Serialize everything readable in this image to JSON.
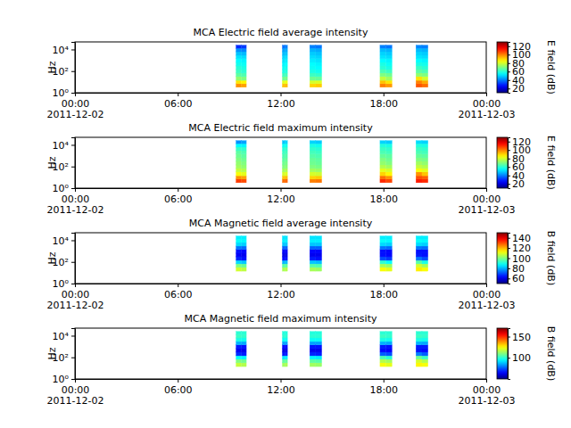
{
  "chart_data": [
    {
      "type": "heatmap",
      "title": "MCA  Electric field average intensity",
      "y_label": "Hz",
      "log": "y",
      "xlim": [
        "2011-12-02 00:00",
        "2011-12-03 00:00"
      ],
      "xticks": [
        {
          "value": "2011-12-02 00:00",
          "label": "00:00\n2011-12-02"
        },
        {
          "value": "2011-12-02 06:00",
          "label": "06:00"
        },
        {
          "value": "2011-12-02 12:00",
          "label": "12:00"
        },
        {
          "value": "2011-12-02 18:00",
          "label": "18:00"
        },
        {
          "value": "2011-12-03 00:00",
          "label": "00:00\n2011-12-03"
        }
      ],
      "ylim": [
        1,
        50000
      ],
      "yticks": [
        {
          "value": 1,
          "label": "10⁰"
        },
        {
          "value": 100,
          "label": "10²"
        },
        {
          "value": 10000,
          "label": "10⁴"
        }
      ],
      "x_bins": [
        [
          "2011-12-02 09:24",
          "2011-12-02 09:42"
        ],
        [
          "2011-12-02 09:42",
          "2011-12-02 10:00"
        ],
        [
          "2011-12-02 12:06",
          "2011-12-02 12:15"
        ],
        [
          "2011-12-02 12:15",
          "2011-12-02 12:24"
        ],
        [
          "2011-12-02 13:42",
          "2011-12-02 14:03"
        ],
        [
          "2011-12-02 14:03",
          "2011-12-02 14:24"
        ],
        [
          "2011-12-02 17:48",
          "2011-12-02 18:09"
        ],
        [
          "2011-12-02 18:09",
          "2011-12-02 18:30"
        ],
        [
          "2011-12-02 19:54",
          "2011-12-02 20:15"
        ],
        [
          "2011-12-02 20:15",
          "2011-12-02 20:36"
        ]
      ],
      "y_bins": [
        3.2,
        6.8,
        14,
        31,
        66,
        140,
        300,
        640,
        1400,
        2900,
        6200,
        13000,
        25000
      ],
      "cells": [
        [
          98,
          88,
          72,
          66,
          62,
          60,
          57,
          55,
          52,
          48,
          42,
          30
        ],
        [
          96,
          86,
          70,
          64,
          60,
          58,
          56,
          54,
          51,
          47,
          41,
          32
        ],
        [
          92,
          82,
          68,
          62,
          58,
          56,
          54,
          52,
          50,
          47,
          44,
          38
        ],
        [
          93,
          83,
          69,
          63,
          59,
          57,
          55,
          53,
          51,
          48,
          45,
          40
        ],
        [
          90,
          80,
          68,
          62,
          58,
          56,
          55,
          53,
          51,
          49,
          46,
          40
        ],
        [
          91,
          81,
          67,
          61,
          57,
          55,
          54,
          52,
          50,
          48,
          45,
          39
        ],
        [
          100,
          92,
          78,
          70,
          64,
          60,
          58,
          55,
          52,
          50,
          47,
          40
        ],
        [
          97,
          88,
          74,
          68,
          62,
          58,
          56,
          54,
          51,
          49,
          46,
          39
        ],
        [
          105,
          100,
          88,
          72,
          66,
          62,
          58,
          55,
          52,
          50,
          47,
          41
        ],
        [
          102,
          95,
          80,
          70,
          64,
          60,
          57,
          54,
          51,
          49,
          46,
          40
        ]
      ],
      "colorbar": {
        "label": "E field (dB)",
        "lim": [
          10,
          130
        ],
        "ticks": [
          20,
          40,
          60,
          80,
          100,
          120
        ]
      }
    },
    {
      "type": "heatmap",
      "title": "MCA  Electric field maximum intensity",
      "y_label": "Hz",
      "log": "y",
      "xlim": [
        "2011-12-02 00:00",
        "2011-12-03 00:00"
      ],
      "xticks": [
        {
          "value": "2011-12-02 00:00",
          "label": "00:00\n2011-12-02"
        },
        {
          "value": "2011-12-02 06:00",
          "label": "06:00"
        },
        {
          "value": "2011-12-02 12:00",
          "label": "12:00"
        },
        {
          "value": "2011-12-02 18:00",
          "label": "18:00"
        },
        {
          "value": "2011-12-03 00:00",
          "label": "00:00\n2011-12-03"
        }
      ],
      "ylim": [
        1,
        50000
      ],
      "yticks": [
        {
          "value": 1,
          "label": "10⁰"
        },
        {
          "value": 100,
          "label": "10²"
        },
        {
          "value": 10000,
          "label": "10⁴"
        }
      ],
      "x_bins": [
        [
          "2011-12-02 09:24",
          "2011-12-02 09:42"
        ],
        [
          "2011-12-02 09:42",
          "2011-12-02 10:00"
        ],
        [
          "2011-12-02 12:06",
          "2011-12-02 12:15"
        ],
        [
          "2011-12-02 12:15",
          "2011-12-02 12:24"
        ],
        [
          "2011-12-02 13:42",
          "2011-12-02 14:03"
        ],
        [
          "2011-12-02 14:03",
          "2011-12-02 14:24"
        ],
        [
          "2011-12-02 17:48",
          "2011-12-02 18:09"
        ],
        [
          "2011-12-02 18:09",
          "2011-12-02 18:30"
        ],
        [
          "2011-12-02 19:54",
          "2011-12-02 20:15"
        ],
        [
          "2011-12-02 20:15",
          "2011-12-02 20:36"
        ]
      ],
      "y_bins": [
        3.2,
        6.8,
        14,
        31,
        66,
        140,
        300,
        640,
        1400,
        2900,
        6200,
        13000,
        25000
      ],
      "cells": [
        [
          108,
          98,
          84,
          78,
          74,
          72,
          70,
          68,
          66,
          62,
          55,
          42
        ],
        [
          106,
          96,
          82,
          76,
          72,
          70,
          68,
          66,
          64,
          61,
          54,
          44
        ],
        [
          102,
          92,
          80,
          74,
          70,
          68,
          66,
          64,
          62,
          60,
          56,
          48
        ],
        [
          103,
          93,
          81,
          75,
          71,
          69,
          67,
          65,
          63,
          61,
          57,
          50
        ],
        [
          100,
          90,
          80,
          74,
          70,
          68,
          67,
          65,
          63,
          61,
          58,
          50
        ],
        [
          101,
          91,
          79,
          73,
          69,
          67,
          66,
          64,
          62,
          60,
          57,
          49
        ],
        [
          110,
          102,
          90,
          82,
          76,
          72,
          70,
          67,
          64,
          62,
          59,
          50
        ],
        [
          107,
          98,
          86,
          80,
          74,
          70,
          68,
          66,
          63,
          61,
          58,
          49
        ],
        [
          112,
          106,
          98,
          84,
          78,
          74,
          70,
          67,
          64,
          62,
          59,
          51
        ],
        [
          110,
          104,
          92,
          82,
          76,
          72,
          69,
          66,
          63,
          61,
          58,
          50
        ]
      ],
      "colorbar": {
        "label": "E field (dB)",
        "lim": [
          10,
          130
        ],
        "ticks": [
          20,
          40,
          60,
          80,
          100,
          120
        ]
      }
    },
    {
      "type": "heatmap",
      "title": "MCA  Magnetic field average intensity",
      "y_label": "Hz",
      "log": "y",
      "xlim": [
        "2011-12-02 00:00",
        "2011-12-03 00:00"
      ],
      "xticks": [
        {
          "value": "2011-12-02 00:00",
          "label": "00:00\n2011-12-02"
        },
        {
          "value": "2011-12-02 06:00",
          "label": "06:00"
        },
        {
          "value": "2011-12-02 12:00",
          "label": "12:00"
        },
        {
          "value": "2011-12-02 18:00",
          "label": "18:00"
        },
        {
          "value": "2011-12-03 00:00",
          "label": "00:00\n2011-12-03"
        }
      ],
      "ylim": [
        1,
        50000
      ],
      "yticks": [
        {
          "value": 1,
          "label": "10⁰"
        },
        {
          "value": 100,
          "label": "10²"
        },
        {
          "value": 10000,
          "label": "10⁴"
        }
      ],
      "x_bins": [
        [
          "2011-12-02 09:24",
          "2011-12-02 09:42"
        ],
        [
          "2011-12-02 09:42",
          "2011-12-02 10:00"
        ],
        [
          "2011-12-02 12:06",
          "2011-12-02 12:15"
        ],
        [
          "2011-12-02 12:15",
          "2011-12-02 12:24"
        ],
        [
          "2011-12-02 13:42",
          "2011-12-02 14:03"
        ],
        [
          "2011-12-02 14:03",
          "2011-12-02 14:24"
        ],
        [
          "2011-12-02 17:48",
          "2011-12-02 18:09"
        ],
        [
          "2011-12-02 18:09",
          "2011-12-02 18:30"
        ],
        [
          "2011-12-02 19:54",
          "2011-12-02 20:15"
        ],
        [
          "2011-12-02 20:15",
          "2011-12-02 20:36"
        ]
      ],
      "y_bins": [
        3.2,
        6.8,
        14,
        31,
        66,
        140,
        300,
        640,
        1400,
        2900,
        6200,
        13000,
        25000
      ],
      "cells": [
        [
          null,
          null,
          108,
          100,
          84,
          66,
          62,
          64,
          74,
          84,
          88,
          86
        ],
        [
          null,
          null,
          106,
          98,
          82,
          64,
          61,
          63,
          73,
          83,
          87,
          86
        ],
        [
          null,
          null,
          104,
          96,
          80,
          63,
          60,
          62,
          72,
          82,
          86,
          85
        ],
        [
          null,
          null,
          105,
          97,
          81,
          64,
          60,
          62,
          72,
          82,
          86,
          85
        ],
        [
          null,
          null,
          104,
          96,
          82,
          65,
          61,
          63,
          72,
          82,
          86,
          85
        ],
        [
          null,
          null,
          103,
          95,
          81,
          64,
          61,
          63,
          72,
          82,
          86,
          85
        ],
        [
          null,
          null,
          112,
          104,
          92,
          70,
          64,
          64,
          74,
          84,
          88,
          86
        ],
        [
          null,
          null,
          110,
          102,
          88,
          68,
          63,
          63,
          73,
          83,
          87,
          86
        ],
        [
          null,
          null,
          114,
          108,
          96,
          74,
          65,
          64,
          74,
          84,
          88,
          86
        ],
        [
          null,
          null,
          112,
          104,
          90,
          70,
          64,
          64,
          73,
          83,
          87,
          86
        ]
      ],
      "colorbar": {
        "label": "B field (dB)",
        "lim": [
          50,
          150
        ],
        "ticks": [
          60,
          80,
          100,
          120,
          140
        ]
      }
    },
    {
      "type": "heatmap",
      "title": "MCA  Magnetic field maximum intensity",
      "y_label": "Hz",
      "log": "y",
      "xlim": [
        "2011-12-02 00:00",
        "2011-12-03 00:00"
      ],
      "xticks": [
        {
          "value": "2011-12-02 00:00",
          "label": "00:00\n2011-12-02"
        },
        {
          "value": "2011-12-02 06:00",
          "label": "06:00"
        },
        {
          "value": "2011-12-02 12:00",
          "label": "12:00"
        },
        {
          "value": "2011-12-02 18:00",
          "label": "18:00"
        },
        {
          "value": "2011-12-03 00:00",
          "label": "00:00\n2011-12-03"
        }
      ],
      "ylim": [
        1,
        50000
      ],
      "yticks": [
        {
          "value": 1,
          "label": "10⁰"
        },
        {
          "value": 100,
          "label": "10²"
        },
        {
          "value": 10000,
          "label": "10⁴"
        }
      ],
      "x_bins": [
        [
          "2011-12-02 09:24",
          "2011-12-02 09:42"
        ],
        [
          "2011-12-02 09:42",
          "2011-12-02 10:00"
        ],
        [
          "2011-12-02 12:06",
          "2011-12-02 12:15"
        ],
        [
          "2011-12-02 12:15",
          "2011-12-02 12:24"
        ],
        [
          "2011-12-02 13:42",
          "2011-12-02 14:03"
        ],
        [
          "2011-12-02 14:03",
          "2011-12-02 14:24"
        ],
        [
          "2011-12-02 17:48",
          "2011-12-02 18:09"
        ],
        [
          "2011-12-02 18:09",
          "2011-12-02 18:30"
        ],
        [
          "2011-12-02 19:54",
          "2011-12-02 20:15"
        ],
        [
          "2011-12-02 20:15",
          "2011-12-02 20:36"
        ]
      ],
      "y_bins": [
        3.2,
        6.8,
        14,
        31,
        66,
        140,
        300,
        640,
        1400,
        2900,
        6200,
        13000,
        25000
      ],
      "cells": [
        [
          null,
          null,
          118,
          110,
          96,
          70,
          64,
          68,
          86,
          98,
          102,
          100
        ],
        [
          null,
          null,
          116,
          108,
          94,
          68,
          63,
          67,
          85,
          97,
          101,
          100
        ],
        [
          null,
          null,
          114,
          106,
          92,
          67,
          62,
          66,
          84,
          96,
          100,
          99
        ],
        [
          null,
          null,
          115,
          107,
          93,
          68,
          62,
          66,
          84,
          96,
          100,
          99
        ],
        [
          null,
          null,
          114,
          106,
          94,
          69,
          63,
          67,
          84,
          96,
          100,
          99
        ],
        [
          null,
          null,
          113,
          105,
          93,
          68,
          63,
          67,
          84,
          96,
          100,
          99
        ],
        [
          null,
          null,
          124,
          116,
          104,
          76,
          66,
          68,
          86,
          98,
          102,
          100
        ],
        [
          null,
          null,
          122,
          114,
          100,
          74,
          65,
          67,
          85,
          97,
          101,
          100
        ],
        [
          null,
          null,
          126,
          120,
          108,
          80,
          67,
          68,
          86,
          98,
          102,
          100
        ],
        [
          null,
          null,
          124,
          116,
          102,
          76,
          66,
          68,
          85,
          97,
          101,
          100
        ]
      ],
      "colorbar": {
        "label": "B field (dB)",
        "lim": [
          50,
          170
        ],
        "ticks": [
          100,
          150
        ]
      }
    }
  ]
}
